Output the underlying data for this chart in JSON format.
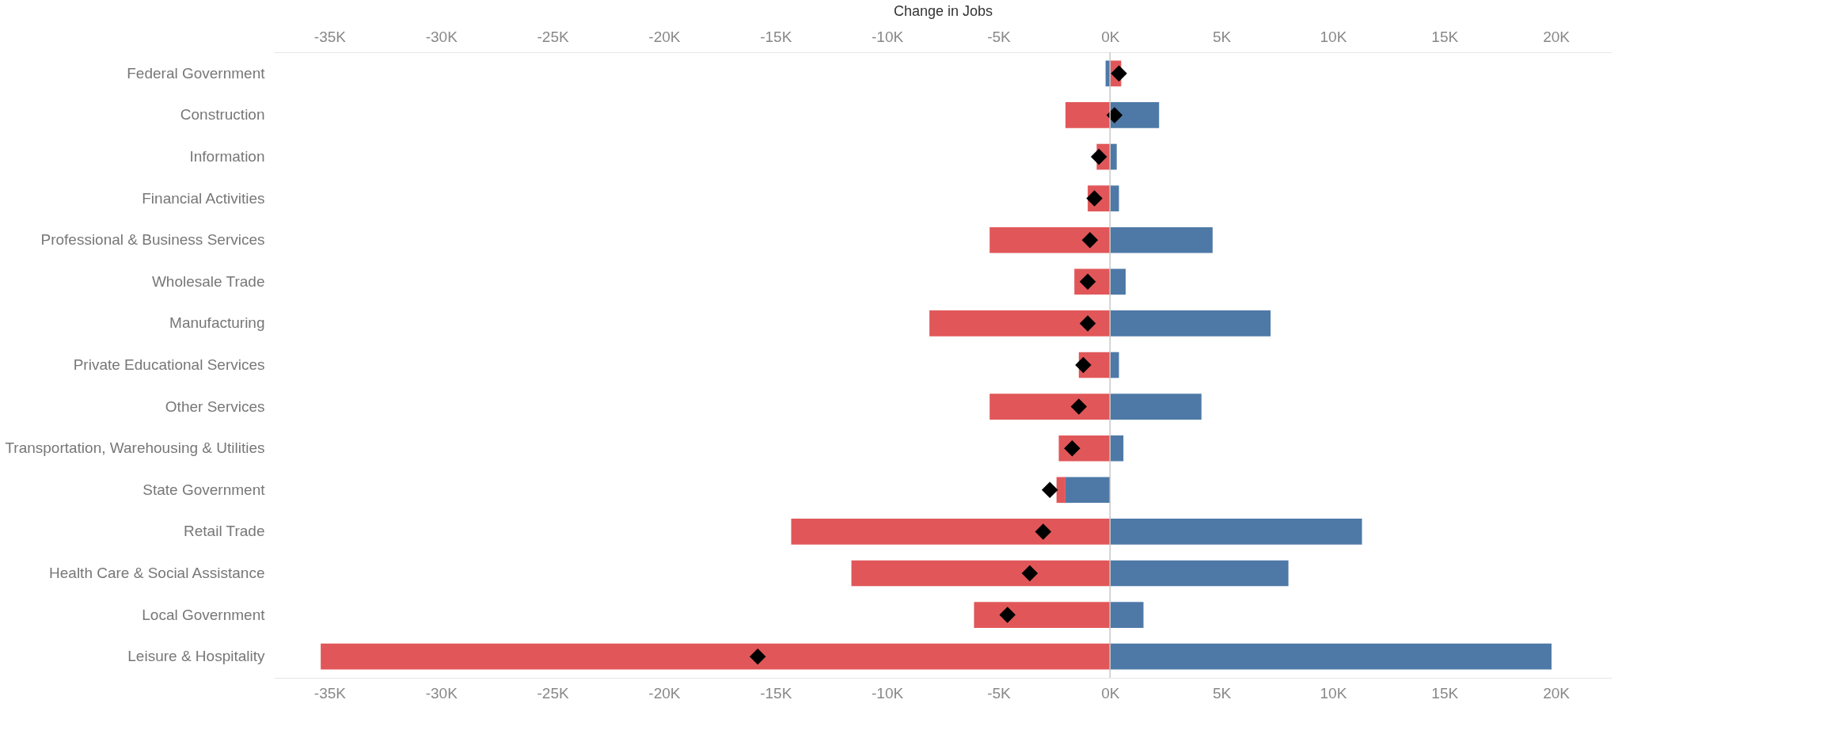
{
  "chart_data": {
    "type": "bar",
    "orientation": "horizontal",
    "stacked": true,
    "x2label": "Change in Jobs",
    "categories": [
      "Federal Government",
      "Construction",
      "Information",
      "Financial Activities",
      "Professional & Business Services",
      "Wholesale Trade",
      "Manufacturing",
      "Private Educational Services",
      "Other Services",
      "Transportation, Warehousing & Utilities",
      "State Government",
      "Retail Trade",
      "Health Care & Social Assistance",
      "Local Government",
      "Leisure & Hospitality"
    ],
    "series": [
      {
        "color": "#4e79a7",
        "values": [
          -200,
          2200,
          300,
          400,
          4600,
          700,
          7200,
          400,
          4100,
          600,
          -2000,
          11300,
          8000,
          1500,
          19800
        ]
      },
      {
        "color": "#e15759",
        "values": [
          500,
          -2000,
          -600,
          -1000,
          -5400,
          -1600,
          -8100,
          -1400,
          -5400,
          -2300,
          -400,
          -14300,
          -11600,
          -6100,
          -35400
        ]
      },
      {
        "type": "scatter",
        "color": "#000000",
        "marker": "diamond",
        "values": [
          400,
          200,
          -500,
          -700,
          -900,
          -1000,
          -1000,
          -1200,
          -1400,
          -1700,
          -2700,
          -3000,
          -3600,
          -4600,
          -15800
        ]
      }
    ],
    "xlim": [
      -37500,
      22500
    ],
    "xticks": [
      {
        "value": -35000,
        "label": "-35K"
      },
      {
        "value": -30000,
        "label": "-30K"
      },
      {
        "value": -25000,
        "label": "-25K"
      },
      {
        "value": -20000,
        "label": "-20K"
      },
      {
        "value": -15000,
        "label": "-15K"
      },
      {
        "value": -10000,
        "label": "-10K"
      },
      {
        "value": -5000,
        "label": "-5K"
      },
      {
        "value": 0,
        "label": "0K"
      },
      {
        "value": 5000,
        "label": "5K"
      },
      {
        "value": 10000,
        "label": "10K"
      },
      {
        "value": 15000,
        "label": "15K"
      },
      {
        "value": 20000,
        "label": "20K"
      }
    ],
    "x2lim": [
      -37500,
      22500
    ],
    "x2ticks": [
      {
        "value": -35000,
        "label": "-35K"
      },
      {
        "value": -30000,
        "label": "-30K"
      },
      {
        "value": -25000,
        "label": "-25K"
      },
      {
        "value": -20000,
        "label": "-20K"
      },
      {
        "value": -15000,
        "label": "-15K"
      },
      {
        "value": -10000,
        "label": "-10K"
      },
      {
        "value": -5000,
        "label": "-5K"
      },
      {
        "value": 0,
        "label": "0K"
      },
      {
        "value": 5000,
        "label": "5K"
      },
      {
        "value": 10000,
        "label": "10K"
      },
      {
        "value": 15000,
        "label": "15K"
      },
      {
        "value": 20000,
        "label": "20K"
      }
    ],
    "ref_lines": [
      {
        "axis": "x",
        "value": 0,
        "color": "#c8c8c8"
      }
    ],
    "grid": false
  }
}
